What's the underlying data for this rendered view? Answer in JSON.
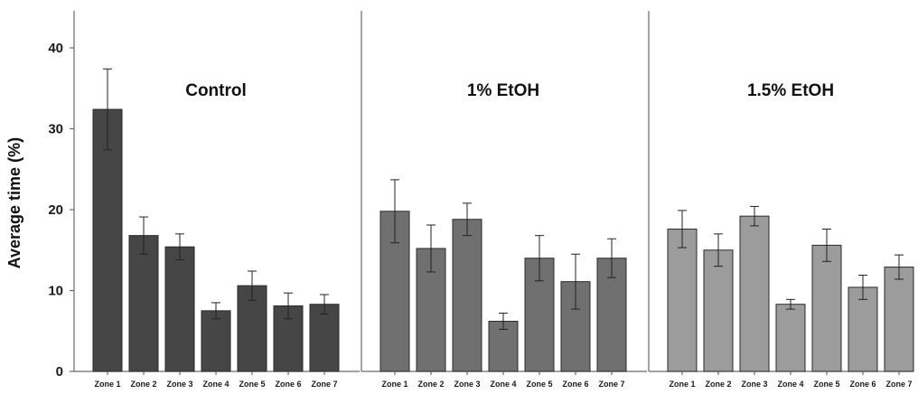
{
  "chart_data": {
    "type": "bar",
    "ylabel": "Average time (%)",
    "ylim": [
      0,
      45
    ],
    "yticks": [
      0,
      10,
      20,
      30,
      40
    ],
    "grid": false,
    "categories": [
      "Zone 1",
      "Zone 2",
      "Zone 3",
      "Zone 4",
      "Zone 5",
      "Zone 6",
      "Zone 7"
    ],
    "panels": [
      {
        "title": "Control",
        "color": "#464646",
        "values": [
          32.4,
          16.8,
          15.4,
          7.5,
          10.6,
          8.1,
          8.3
        ],
        "errors": [
          5.0,
          2.3,
          1.6,
          1.0,
          1.8,
          1.6,
          1.2
        ]
      },
      {
        "title": "1% EtOH",
        "color": "#707070",
        "values": [
          19.8,
          15.2,
          18.8,
          6.2,
          14.0,
          11.1,
          14.0
        ],
        "errors": [
          3.9,
          2.9,
          2.0,
          1.0,
          2.8,
          3.4,
          2.4
        ]
      },
      {
        "title": "1.5% EtOH",
        "color": "#9c9c9c",
        "values": [
          17.6,
          15.0,
          19.2,
          8.3,
          15.6,
          10.4,
          12.9
        ],
        "errors": [
          2.3,
          2.0,
          1.2,
          0.6,
          2.0,
          1.5,
          1.5
        ]
      }
    ]
  }
}
